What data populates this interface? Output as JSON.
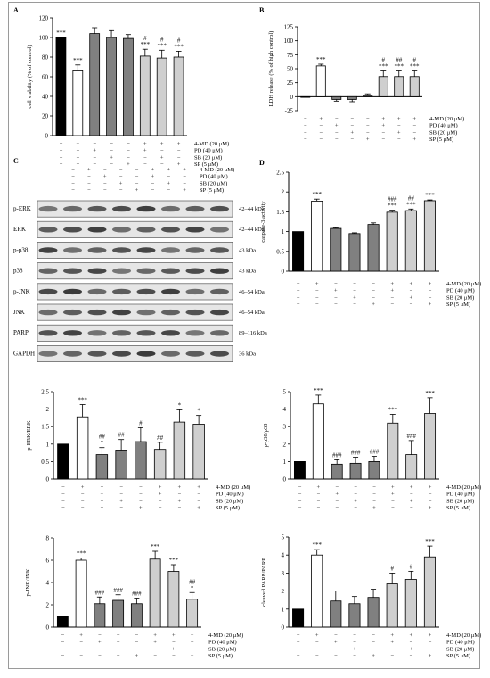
{
  "conditions": {
    "labels": [
      "4-MD (20 μM)",
      "PD (40 μM)",
      "SB (20 μM)",
      "SP (5 μM)"
    ],
    "rows": [
      [
        "−",
        "+",
        "−",
        "−",
        "−",
        "+",
        "+",
        "+"
      ],
      [
        "−",
        "−",
        "+",
        "−",
        "−",
        "+",
        "−",
        "−"
      ],
      [
        "−",
        "−",
        "−",
        "+",
        "−",
        "−",
        "+",
        "−"
      ],
      [
        "−",
        "−",
        "−",
        "−",
        "+",
        "−",
        "−",
        "+"
      ]
    ]
  },
  "colors": {
    "black": "#000000",
    "white": "#ffffff",
    "dark": "#808080",
    "light": "#cfcfcf"
  },
  "bar_fill_keys": [
    "black",
    "white",
    "dark",
    "dark",
    "dark",
    "light",
    "light",
    "light"
  ],
  "blot": {
    "panel_label": "C",
    "rows": [
      {
        "name": "p-ERK",
        "size": "42–44 kDa"
      },
      {
        "name": "ERK",
        "size": "42–44 kDa"
      },
      {
        "name": "p-p38",
        "size": "43 kDa"
      },
      {
        "name": "p38",
        "size": "43 kDa"
      },
      {
        "name": "p-JNK",
        "size": "46–54 kDa"
      },
      {
        "name": "JNK",
        "size": "46–54 kDa"
      },
      {
        "name": "PARP",
        "size": "89–116 kDa"
      },
      {
        "name": "GAPDH",
        "size": "36 kDa"
      }
    ]
  },
  "chart_data": [
    {
      "id": "A",
      "type": "bar",
      "panel_label": "A",
      "ylabel": "cell viability (% of control)",
      "ylim": [
        0,
        120
      ],
      "yticks": [
        0,
        20,
        40,
        60,
        80,
        100,
        120
      ],
      "values": [
        100,
        66,
        104,
        100,
        99,
        81,
        79,
        80
      ],
      "errors": [
        0,
        6,
        6,
        7,
        4,
        7,
        8,
        6
      ],
      "sig_lines": [
        [
          "***"
        ],
        [
          "***"
        ],
        [],
        [],
        [],
        [
          "#",
          "***"
        ],
        [
          "#",
          "***"
        ],
        [
          "#",
          "***"
        ]
      ]
    },
    {
      "id": "B",
      "type": "bar",
      "panel_label": "B",
      "ylabel": "LDH release (% of high control)",
      "ylim": [
        -25,
        125
      ],
      "yticks": [
        -25,
        0,
        25,
        50,
        75,
        100,
        125
      ],
      "values": [
        0,
        55,
        -5,
        -5,
        2,
        36,
        36,
        36
      ],
      "errors": [
        0,
        3,
        3,
        4,
        3,
        10,
        10,
        10
      ],
      "sig_lines": [
        [],
        [
          "***"
        ],
        [],
        [],
        [],
        [
          "#",
          "***"
        ],
        [
          "##",
          "***"
        ],
        [
          "#",
          "***"
        ]
      ]
    },
    {
      "id": "D",
      "type": "bar",
      "panel_label": "D",
      "ylabel": "caspase-3 activity",
      "ylim": [
        0,
        2.5
      ],
      "yticks": [
        0,
        0.5,
        1,
        1.5,
        2,
        2.5
      ],
      "values": [
        1.0,
        1.77,
        1.08,
        0.95,
        1.18,
        1.49,
        1.53,
        1.78
      ],
      "errors": [
        0,
        0.05,
        0.02,
        0.02,
        0.04,
        0.05,
        0.04,
        0.02
      ],
      "sig_lines": [
        [],
        [
          "***"
        ],
        [],
        [],
        [],
        [
          "###",
          "***"
        ],
        [
          "##",
          "***"
        ],
        [
          "***"
        ]
      ]
    },
    {
      "id": "ERK",
      "type": "bar",
      "panel_label": "",
      "ylabel": "p-ERK/ERK",
      "ylim": [
        0,
        2.5
      ],
      "yticks": [
        0,
        0.5,
        1,
        1.5,
        2,
        2.5
      ],
      "values": [
        1.0,
        1.78,
        0.7,
        0.83,
        1.07,
        0.85,
        1.63,
        1.57
      ],
      "errors": [
        0,
        0.35,
        0.2,
        0.3,
        0.4,
        0.2,
        0.35,
        0.25
      ],
      "sig_lines": [
        [],
        [
          "***"
        ],
        [
          "##",
          "*"
        ],
        [
          "##"
        ],
        [
          "#"
        ],
        [
          "##"
        ],
        [
          "*"
        ],
        [
          "*"
        ]
      ]
    },
    {
      "id": "P38",
      "type": "bar",
      "panel_label": "",
      "ylabel": "p-p38/p38",
      "ylim": [
        0,
        5
      ],
      "yticks": [
        0,
        1,
        2,
        3,
        4,
        5
      ],
      "values": [
        1.0,
        4.3,
        0.85,
        0.9,
        1.0,
        3.2,
        1.4,
        3.75
      ],
      "errors": [
        0,
        0.5,
        0.25,
        0.35,
        0.3,
        0.5,
        0.8,
        0.9
      ],
      "sig_lines": [
        [],
        [
          "***"
        ],
        [
          "###"
        ],
        [
          "###"
        ],
        [
          "###"
        ],
        [
          "***"
        ],
        [
          "###"
        ],
        [
          "***"
        ]
      ]
    },
    {
      "id": "JNK",
      "type": "bar",
      "panel_label": "",
      "ylabel": "p-JNK/JNK",
      "ylim": [
        0,
        8
      ],
      "yticks": [
        0,
        2,
        4,
        6,
        8
      ],
      "values": [
        1.0,
        6.0,
        2.1,
        2.4,
        2.1,
        6.1,
        5.0,
        2.5
      ],
      "errors": [
        0,
        0.2,
        0.6,
        0.5,
        0.5,
        0.7,
        0.6,
        0.6
      ],
      "sig_lines": [
        [],
        [
          "***"
        ],
        [
          "###"
        ],
        [
          "###"
        ],
        [
          "###"
        ],
        [
          "***"
        ],
        [
          "***"
        ],
        [
          "##",
          "*"
        ]
      ]
    },
    {
      "id": "PARP",
      "type": "bar",
      "panel_label": "",
      "ylabel": "cleaved PARP/PARP",
      "ylim": [
        0,
        5
      ],
      "yticks": [
        0,
        1,
        2,
        3,
        4,
        5
      ],
      "values": [
        1.0,
        4.0,
        1.45,
        1.3,
        1.65,
        2.4,
        2.65,
        3.9
      ],
      "errors": [
        0,
        0.3,
        0.55,
        0.4,
        0.45,
        0.6,
        0.45,
        0.6
      ],
      "sig_lines": [
        [],
        [
          "***"
        ],
        [],
        [],
        [],
        [
          "#"
        ],
        [
          "#"
        ],
        [
          "***"
        ]
      ]
    }
  ]
}
